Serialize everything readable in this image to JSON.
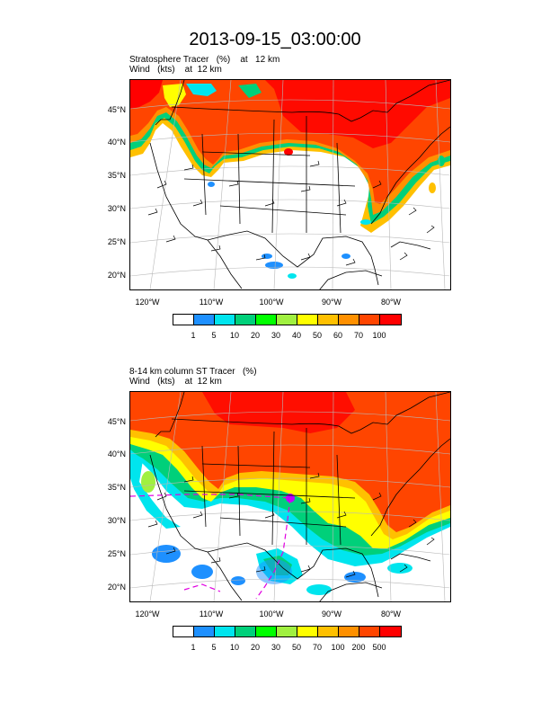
{
  "title": "2013-09-15_03:00:00",
  "panels": [
    {
      "line1": "Stratosphere Tracer   (%)    at   12 km",
      "line2": "Wind   (kts)    at  12 km",
      "lat_labels": [
        "45°N",
        "40°N",
        "35°N",
        "30°N",
        "25°N",
        "20°N"
      ],
      "lon_labels": [
        "120°W",
        "110°W",
        "100°W",
        "90°W",
        "80°W"
      ],
      "legend_labels": [
        "1",
        "5",
        "10",
        "20",
        "30",
        "40",
        "50",
        "60",
        "70",
        "100"
      ]
    },
    {
      "line1": "8-14 km column ST Tracer   (%)",
      "line2": "Wind   (kts)    at  12 km",
      "lat_labels": [
        "45°N",
        "40°N",
        "35°N",
        "30°N",
        "25°N",
        "20°N"
      ],
      "lon_labels": [
        "120°W",
        "110°W",
        "100°W",
        "90°W",
        "80°W"
      ],
      "legend_labels": [
        "1",
        "5",
        "10",
        "20",
        "30",
        "50",
        "70",
        "100",
        "200",
        "500"
      ]
    }
  ],
  "legend_colors": [
    "#ffffff",
    "#1e90ff",
    "#00e5ee",
    "#00d07a",
    "#00ff00",
    "#a0f040",
    "#ffff00",
    "#ffc000",
    "#ff9000",
    "#ff4500",
    "#ff0000"
  ]
}
